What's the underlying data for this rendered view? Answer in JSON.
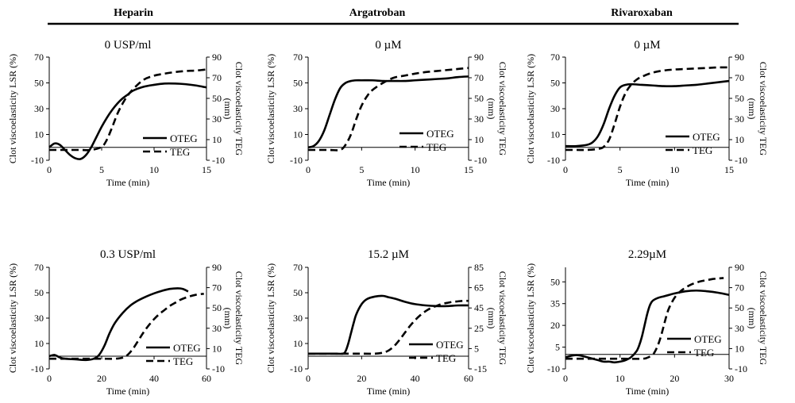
{
  "figure": {
    "column_headers": [
      "Heparin",
      "Argatroban",
      "Rivaroxaban"
    ]
  },
  "chart_data": [
    {
      "type": "line",
      "title": "0 USP/ml",
      "xlabel": "Time (min)",
      "ylabel": "Clot viscoelasticity LSR (%)",
      "y2label": "Clot viscoelasticity TEG (mm)",
      "xlim": [
        0,
        15
      ],
      "x_ticks": [
        0,
        5,
        10,
        15
      ],
      "ylim": [
        -10,
        70
      ],
      "y_ticks": [
        -10,
        10,
        30,
        50,
        70
      ],
      "y2lim": [
        -10,
        90
      ],
      "y2_ticks": [
        -10,
        10,
        30,
        50,
        70,
        90
      ],
      "series": [
        {
          "name": "OTEG",
          "axis": "left",
          "style": "solid",
          "x": [
            0,
            0.5,
            1,
            1.5,
            2,
            2.5,
            3,
            3.5,
            4,
            4.5,
            5,
            5.5,
            6,
            6.5,
            7,
            7.5,
            8,
            9,
            10,
            11,
            12,
            13,
            14,
            15
          ],
          "y": [
            0,
            3,
            2,
            -2,
            -6,
            -8.5,
            -9,
            -6,
            0,
            8,
            16,
            23,
            29,
            34,
            38,
            41,
            44,
            47,
            48.5,
            49.5,
            49.5,
            49,
            48,
            46.5
          ]
        },
        {
          "name": "TEG",
          "axis": "right",
          "style": "dashed",
          "x": [
            0,
            1,
            2,
            3,
            4,
            5,
            5.5,
            6,
            6.5,
            7,
            7.5,
            8,
            9,
            10,
            11,
            12,
            13,
            14,
            15
          ],
          "y": [
            0,
            0,
            0,
            0,
            0,
            3,
            10,
            22,
            35,
            45,
            53,
            59,
            68,
            72,
            74,
            75.5,
            76.5,
            77,
            78
          ]
        }
      ]
    },
    {
      "type": "line",
      "title": "0 µM",
      "xlabel": "Time (min)",
      "ylabel": "Clot viscoelasticity LSR (%)",
      "y2label": "Clot viscoelasticity TEG (mm)",
      "xlim": [
        0,
        15
      ],
      "x_ticks": [
        0,
        5,
        10,
        15
      ],
      "ylim": [
        -10,
        70
      ],
      "y_ticks": [
        -10,
        10,
        30,
        50,
        70
      ],
      "y2lim": [
        -10,
        90
      ],
      "y2_ticks": [
        -10,
        10,
        30,
        50,
        70,
        90
      ],
      "series": [
        {
          "name": "OTEG",
          "axis": "left",
          "style": "solid",
          "x": [
            0,
            0.5,
            1,
            1.5,
            2,
            2.5,
            3,
            3.5,
            4,
            4.5,
            5,
            6,
            7,
            8,
            9,
            10,
            11,
            12,
            13,
            14,
            15
          ],
          "y": [
            0,
            1,
            5,
            13,
            25,
            37,
            46,
            50,
            51.5,
            52,
            52,
            52,
            51.5,
            51.5,
            51.5,
            52,
            52.5,
            53,
            53.5,
            54.5,
            55
          ]
        },
        {
          "name": "TEG",
          "axis": "right",
          "style": "dashed",
          "x": [
            0,
            1,
            2,
            3,
            3.5,
            4,
            4.5,
            5,
            5.5,
            6,
            7,
            8,
            9,
            10,
            11,
            12,
            13,
            14,
            15
          ],
          "y": [
            0,
            0,
            0,
            0,
            5,
            15,
            30,
            43,
            52,
            58,
            65,
            70,
            72,
            74,
            75.5,
            76.5,
            77.5,
            78.5,
            79.5
          ]
        }
      ]
    },
    {
      "type": "line",
      "title": "0 µM",
      "xlabel": "Time (min)",
      "ylabel": "Clot viscoelasticity LSR (%)",
      "y2label": "Clot viscoelasticity TEG (mm)",
      "xlim": [
        0,
        15
      ],
      "x_ticks": [
        0,
        5,
        10,
        15
      ],
      "ylim": [
        -10,
        70
      ],
      "y_ticks": [
        -10,
        10,
        30,
        50,
        70
      ],
      "y2lim": [
        -10,
        90
      ],
      "y2_ticks": [
        -10,
        10,
        30,
        50,
        70,
        90
      ],
      "series": [
        {
          "name": "OTEG",
          "axis": "left",
          "style": "solid",
          "x": [
            0,
            1,
            2,
            2.5,
            3,
            3.5,
            4,
            4.5,
            5,
            5.5,
            6,
            7,
            8,
            9,
            10,
            11,
            12,
            13,
            14,
            15
          ],
          "y": [
            1,
            1,
            2,
            4,
            9,
            18,
            30,
            40,
            46.5,
            48.5,
            49,
            48.5,
            48,
            47.5,
            47.5,
            48,
            48.5,
            49.5,
            50.5,
            51.5
          ]
        },
        {
          "name": "TEG",
          "axis": "right",
          "style": "dashed",
          "x": [
            0,
            1,
            2,
            3,
            3.5,
            4,
            4.5,
            5,
            5.5,
            6,
            6.5,
            7,
            8,
            9,
            10,
            11,
            12,
            13,
            14,
            15
          ],
          "y": [
            0,
            0,
            0,
            1,
            3,
            10,
            25,
            42,
            55,
            63,
            68,
            71,
            75,
            77,
            78,
            78.5,
            79,
            79.5,
            80,
            80
          ]
        }
      ]
    },
    {
      "type": "line",
      "title": "0.3 USP/ml",
      "xlabel": "Time (min)",
      "ylabel": "Clot viscoelasticity LSR (%)",
      "y2label": "Clot viscoelasticity TEG (mm)",
      "xlim": [
        0,
        60
      ],
      "x_ticks": [
        0,
        20,
        40,
        60
      ],
      "ylim": [
        -10,
        70
      ],
      "y_ticks": [
        -10,
        10,
        30,
        50,
        70
      ],
      "y2lim": [
        -10,
        90
      ],
      "y2_ticks": [
        -10,
        10,
        30,
        50,
        70,
        90
      ],
      "series": [
        {
          "name": "OTEG",
          "axis": "left",
          "style": "solid",
          "x": [
            0,
            2,
            4,
            6,
            10,
            14,
            17,
            19,
            21,
            23,
            25,
            28,
            31,
            34,
            37,
            40,
            43,
            46,
            49,
            51,
            53
          ],
          "y": [
            0,
            1,
            -1,
            -2,
            -2.5,
            -3,
            -2,
            1,
            8,
            18,
            26,
            34,
            40,
            44,
            47,
            49.5,
            51.5,
            53,
            53.5,
            53,
            51
          ]
        },
        {
          "name": "TEG",
          "axis": "right",
          "style": "dashed",
          "x": [
            0,
            5,
            10,
            15,
            20,
            25,
            28,
            30,
            32,
            34,
            36,
            38,
            40,
            42,
            44,
            46,
            48,
            50,
            53,
            56,
            59
          ],
          "y": [
            0,
            0,
            0,
            0,
            0,
            0,
            1,
            4,
            10,
            18,
            26,
            33,
            39,
            44,
            48,
            52,
            55,
            58,
            61,
            63,
            64
          ]
        }
      ]
    },
    {
      "type": "line",
      "title": "15.2 µM",
      "xlabel": "Time (min)",
      "ylabel": "Clot viscoelasticity LSR (%)",
      "y2label": "Clot viscoelasticity TEG (mm)",
      "xlim": [
        0,
        60
      ],
      "x_ticks": [
        0,
        20,
        40,
        60
      ],
      "ylim": [
        -10,
        70
      ],
      "y_ticks": [
        -10,
        10,
        30,
        50,
        70
      ],
      "y2lim": [
        -15,
        85
      ],
      "y2_ticks": [
        -15,
        5,
        25,
        45,
        65,
        85
      ],
      "series": [
        {
          "name": "OTEG",
          "axis": "left",
          "style": "solid",
          "x": [
            0,
            5,
            10,
            13,
            14,
            15,
            16,
            17,
            18,
            20,
            22,
            25,
            28,
            30,
            33,
            36,
            40,
            44,
            48,
            52,
            56,
            60
          ],
          "y": [
            2,
            2,
            2,
            2,
            4,
            10,
            18,
            26,
            33,
            41,
            45,
            47,
            47.5,
            46.5,
            45,
            43,
            41,
            40,
            39.5,
            39.5,
            40,
            40
          ]
        },
        {
          "name": "TEG",
          "axis": "right",
          "style": "dashed",
          "x": [
            0,
            10,
            20,
            25,
            28,
            30,
            32,
            34,
            36,
            38,
            40,
            42,
            44,
            46,
            48,
            50,
            52,
            54,
            56,
            58,
            60
          ],
          "y": [
            0,
            0,
            0,
            0,
            1,
            3,
            7,
            13,
            20,
            27,
            33,
            38,
            42,
            45,
            47,
            49,
            50,
            51,
            51.5,
            52,
            52
          ]
        }
      ]
    },
    {
      "type": "line",
      "title": "2.29µM",
      "xlabel": "Time (min)",
      "ylabel": "Clot viscoelasticity LSR (%)",
      "y2label": "Clot viscoelasticity TEG (mm)",
      "xlim": [
        0,
        30
      ],
      "x_ticks": [
        0,
        10,
        20,
        30
      ],
      "ylim": [
        -10,
        60
      ],
      "y_ticks": [
        -10,
        5,
        20,
        35,
        50
      ],
      "y2lim": [
        -10,
        90
      ],
      "y2_ticks": [
        -10,
        10,
        30,
        50,
        70,
        90
      ],
      "series": [
        {
          "name": "OTEG",
          "axis": "left",
          "style": "solid",
          "x": [
            0,
            1,
            2,
            3,
            4,
            5,
            6,
            7,
            8,
            9,
            10,
            11,
            12,
            13,
            13.5,
            14,
            14.5,
            15,
            15.5,
            16,
            17,
            18,
            19,
            20,
            22,
            24,
            26,
            28,
            30
          ],
          "y": [
            -2,
            -1,
            -0.5,
            -1,
            -2,
            -3,
            -4,
            -5,
            -5,
            -5.5,
            -5,
            -4,
            -2,
            2,
            6,
            12,
            20,
            28,
            34,
            37,
            39,
            40,
            41,
            42,
            43.5,
            44,
            43.5,
            42.5,
            41
          ]
        },
        {
          "name": "TEG",
          "axis": "right",
          "style": "dashed",
          "x": [
            0,
            5,
            10,
            14,
            15,
            16,
            16.5,
            17,
            17.5,
            18,
            18.5,
            19,
            20,
            21,
            22,
            23,
            24,
            25,
            26,
            27,
            28,
            29
          ],
          "y": [
            0,
            0,
            0,
            0,
            1,
            4,
            8,
            14,
            22,
            32,
            42,
            50,
            60,
            66,
            70,
            73,
            75,
            76.5,
            77.5,
            78.5,
            79,
            79.5
          ]
        }
      ]
    }
  ]
}
